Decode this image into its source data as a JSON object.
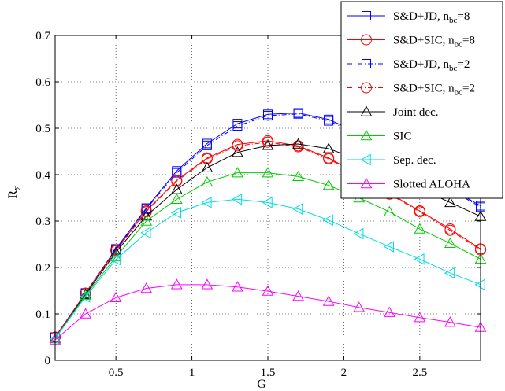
{
  "chart_data": {
    "type": "line",
    "title": "",
    "xlabel": "G",
    "ylabel": "R",
    "ylabel_subscript": "Σ",
    "xlim": [
      0.1,
      2.9
    ],
    "ylim": [
      0,
      0.7
    ],
    "xticks": [
      0.5,
      1,
      1.5,
      2,
      2.5
    ],
    "xtick_labels": [
      "0.5",
      "1",
      "1.5",
      "2",
      "2.5"
    ],
    "yticks": [
      0,
      0.1,
      0.2,
      0.3,
      0.4,
      0.5,
      0.6,
      0.7
    ],
    "ytick_labels": [
      "0",
      "0.1",
      "0.2",
      "0.3",
      "0.4",
      "0.5",
      "0.6",
      "0.7"
    ],
    "grid": true,
    "legend_position": "top-right",
    "x": [
      0.1,
      0.3,
      0.5,
      0.7,
      0.9,
      1.1,
      1.3,
      1.5,
      1.7,
      1.9,
      2.1,
      2.3,
      2.5,
      2.7,
      2.9
    ],
    "series": [
      {
        "name": "S&D+JD, n",
        "name_sub": "bc",
        "name_tail": "=8",
        "color": "#0000ff",
        "dash": "solid",
        "marker": "square",
        "values": [
          0.05,
          0.145,
          0.24,
          0.328,
          0.408,
          0.467,
          0.51,
          0.53,
          0.533,
          0.519,
          0.49,
          0.455,
          0.41,
          0.37,
          0.333
        ]
      },
      {
        "name": "S&D+SIC, n",
        "name_sub": "bc",
        "name_tail": "=8",
        "color": "#ff0000",
        "dash": "solid",
        "marker": "circle",
        "values": [
          0.05,
          0.145,
          0.238,
          0.322,
          0.388,
          0.436,
          0.465,
          0.473,
          0.462,
          0.436,
          0.4,
          0.36,
          0.322,
          0.283,
          0.24
        ]
      },
      {
        "name": "S&D+JD, n",
        "name_sub": "bc",
        "name_tail": "=2",
        "color": "#0000ff",
        "dash": "dashdot",
        "marker": "square",
        "values": [
          0.05,
          0.145,
          0.238,
          0.326,
          0.404,
          0.463,
          0.505,
          0.527,
          0.531,
          0.516,
          0.487,
          0.452,
          0.408,
          0.368,
          0.33
        ]
      },
      {
        "name": "S&D+SIC, n",
        "name_sub": "bc",
        "name_tail": "=2",
        "color": "#ff0000",
        "dash": "dashdot",
        "marker": "circle",
        "values": [
          0.05,
          0.144,
          0.236,
          0.32,
          0.386,
          0.434,
          0.462,
          0.47,
          0.46,
          0.434,
          0.398,
          0.358,
          0.32,
          0.28,
          0.238
        ]
      },
      {
        "name": "Joint dec.",
        "color": "#000000",
        "dash": "solid",
        "marker": "triangle-up",
        "values": [
          0.047,
          0.142,
          0.233,
          0.311,
          0.368,
          0.415,
          0.448,
          0.463,
          0.466,
          0.456,
          0.432,
          0.404,
          0.37,
          0.34,
          0.31
        ]
      },
      {
        "name": "SIC",
        "color": "#00cc00",
        "dash": "solid",
        "marker": "triangle-up",
        "values": [
          0.047,
          0.14,
          0.223,
          0.3,
          0.347,
          0.384,
          0.404,
          0.404,
          0.396,
          0.377,
          0.35,
          0.32,
          0.283,
          0.252,
          0.218
        ]
      },
      {
        "name": "Sep. dec.",
        "color": "#00dddd",
        "dash": "solid",
        "marker": "triangle-left",
        "values": [
          0.047,
          0.137,
          0.217,
          0.275,
          0.318,
          0.34,
          0.347,
          0.34,
          0.326,
          0.302,
          0.273,
          0.245,
          0.218,
          0.188,
          0.163
        ]
      },
      {
        "name": "Slotted ALOHA",
        "color": "#ff00ff",
        "dash": "solid",
        "marker": "triangle-up",
        "values": [
          0.044,
          0.1,
          0.135,
          0.155,
          0.163,
          0.163,
          0.158,
          0.149,
          0.138,
          0.127,
          0.114,
          0.103,
          0.092,
          0.082,
          0.071
        ]
      }
    ]
  }
}
